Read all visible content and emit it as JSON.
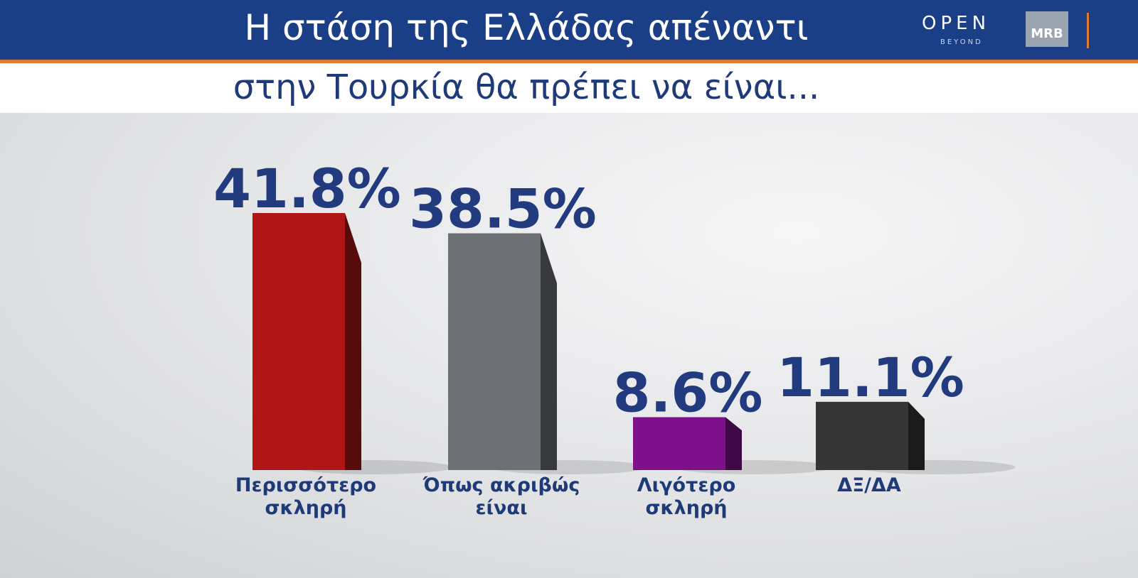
{
  "chart_data": {
    "type": "bar",
    "title": "Η στάση της Ελλάδας απέναντι",
    "subtitle": "στην Τουρκία θα πρέπει να είναι...",
    "categories": [
      "Περισσότερο σκληρή",
      "Όπως ακριβώς είναι",
      "Λιγότερο σκληρή",
      "ΔΞ/ΔΑ"
    ],
    "values": [
      41.8,
      38.5,
      8.6,
      11.1
    ],
    "value_labels": [
      "41.8%",
      "38.5%",
      "8.6%",
      "11.1%"
    ],
    "colors": [
      "#b01616",
      "#6d7175",
      "#7e108c",
      "#353535"
    ]
  },
  "branding": {
    "open": "OPEN",
    "beyond": "BEYOND",
    "mrb": "MRB"
  }
}
